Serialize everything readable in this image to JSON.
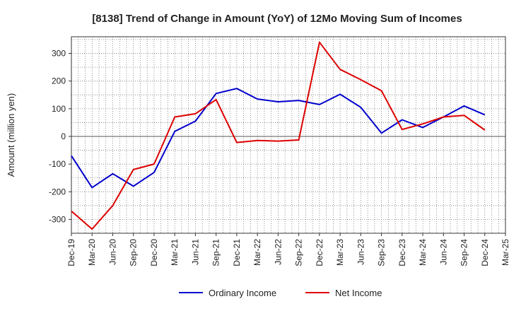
{
  "chart_data": {
    "type": "line",
    "title": "[8138]  Trend of Change in Amount (YoY) of 12Mo Moving Sum of Incomes",
    "ylabel": "Amount (million yen)",
    "xlabel": "",
    "categories": [
      "Dec-19",
      "Mar-20",
      "Jun-20",
      "Sep-20",
      "Dec-20",
      "Mar-21",
      "Jun-21",
      "Sep-21",
      "Dec-21",
      "Mar-22",
      "Jun-22",
      "Sep-22",
      "Dec-22",
      "Mar-23",
      "Jun-23",
      "Sep-23",
      "Dec-23",
      "Mar-24",
      "Jun-24",
      "Sep-24",
      "Dec-24",
      "Mar-25"
    ],
    "ylim": [
      -350,
      360
    ],
    "yticks": [
      -300,
      -200,
      -100,
      0,
      100,
      200,
      300
    ],
    "grid": true,
    "legend_position": "bottom",
    "series": [
      {
        "name": "Ordinary Income",
        "color": "#0000cc",
        "values": [
          -70,
          -185,
          -135,
          -180,
          -130,
          18,
          55,
          155,
          173,
          135,
          125,
          130,
          115,
          152,
          105,
          12,
          60,
          32,
          70,
          110,
          78,
          null
        ]
      },
      {
        "name": "Net Income",
        "color": "#dd0000",
        "values": [
          -270,
          -335,
          -250,
          -120,
          -100,
          70,
          82,
          133,
          -22,
          -15,
          -17,
          -13,
          340,
          242,
          205,
          165,
          25,
          45,
          70,
          76,
          23,
          null
        ]
      }
    ]
  }
}
